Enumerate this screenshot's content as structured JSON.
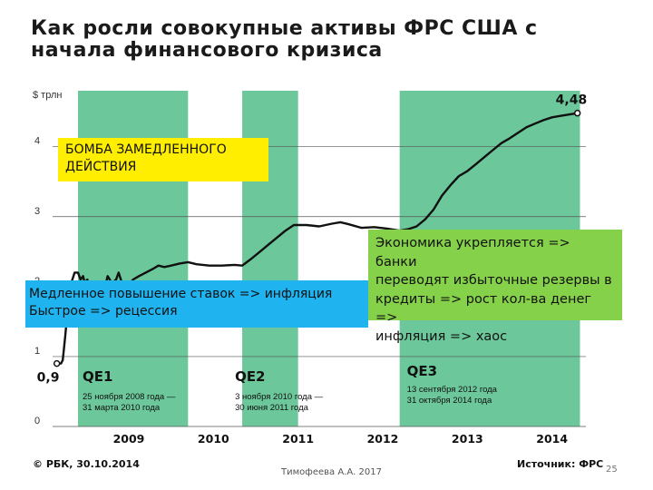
{
  "title": "Как росли совокупные активы ФРС США с начала финансового кризиса",
  "source": "Источник: ФРС",
  "copyright": "© РБК, 30.10.2014",
  "author": "Тимофеева А.А. 2017",
  "page_number": "25",
  "callouts": {
    "yellow": [
      "БОМБА ЗАМЕДЛЕННОГО",
      "ДЕЙСТВИЯ"
    ],
    "blue": [
      "Медленное повышение ставок => инфляция",
      "Быстрое => рецессия"
    ],
    "green": [
      "Экономика укрепляется => банки",
      "переводят избыточные резервы в",
      "кредиты => рост кол-ва денег =>",
      "инфляция => хаос"
    ]
  },
  "colors": {
    "qe_band": "#6cc79a",
    "line": "#111111",
    "yellow_box": "#ffee00",
    "blue_box": "#1fb4f0",
    "green_box": "#86d14a"
  },
  "chart_data": {
    "type": "line",
    "ylabel": "$ трлн",
    "ylim": [
      0,
      4.8
    ],
    "xlim": [
      2008.6,
      2014.9
    ],
    "yticks": [
      0,
      1,
      2,
      3,
      4
    ],
    "xticks": [
      "2009",
      "2010",
      "2011",
      "2012",
      "2013",
      "2014"
    ],
    "grid": true,
    "start_label": "0,9",
    "end_label": "4,48",
    "qe_periods": [
      {
        "name": "QE1",
        "start": 2008.9,
        "end": 2010.2,
        "text": [
          "25 ноября 2008 года —",
          "31 марта 2010 года"
        ]
      },
      {
        "name": "QE2",
        "start": 2010.84,
        "end": 2011.5,
        "text": [
          "3 ноября 2010 года —",
          "30 июня 2011 года"
        ]
      },
      {
        "name": "QE3",
        "start": 2012.7,
        "end": 2014.83,
        "text": [
          "13 сентября 2012 года",
          "31 октября 2014 года"
        ]
      }
    ],
    "series": [
      {
        "x": [
          2008.65,
          2008.7,
          2008.72,
          2008.75,
          2008.78,
          2008.82,
          2008.86,
          2008.9,
          2008.93,
          2008.96,
          2008.98,
          2009.01,
          2009.05,
          2009.08,
          2009.12,
          2009.15,
          2009.2,
          2009.25,
          2009.3,
          2009.35,
          2009.38,
          2009.42,
          2009.48,
          2009.55,
          2009.62,
          2009.7,
          2009.78,
          2009.85,
          2009.92,
          2010.0,
          2010.1,
          2010.2,
          2010.3,
          2010.45,
          2010.6,
          2010.75,
          2010.84,
          2010.95,
          2011.05,
          2011.15,
          2011.25,
          2011.35,
          2011.45,
          2011.5,
          2011.6,
          2011.75,
          2011.9,
          2012.0,
          2012.1,
          2012.25,
          2012.4,
          2012.55,
          2012.7,
          2012.8,
          2012.9,
          2013.0,
          2013.1,
          2013.2,
          2013.3,
          2013.4,
          2013.5,
          2013.6,
          2013.7,
          2013.8,
          2013.9,
          2014.0,
          2014.1,
          2014.2,
          2014.3,
          2014.4,
          2014.5,
          2014.6,
          2014.7,
          2014.8
        ],
        "y": [
          0.9,
          0.9,
          0.95,
          1.3,
          1.7,
          2.05,
          2.2,
          2.2,
          2.1,
          2.15,
          2.05,
          2.1,
          1.95,
          2.05,
          1.9,
          1.95,
          1.9,
          2.15,
          2.05,
          2.1,
          2.2,
          2.05,
          2.0,
          2.1,
          2.15,
          2.2,
          2.25,
          2.3,
          2.28,
          2.3,
          2.33,
          2.35,
          2.32,
          2.3,
          2.3,
          2.31,
          2.3,
          2.4,
          2.5,
          2.6,
          2.7,
          2.8,
          2.88,
          2.88,
          2.88,
          2.86,
          2.9,
          2.92,
          2.89,
          2.84,
          2.85,
          2.83,
          2.8,
          2.82,
          2.86,
          2.96,
          3.1,
          3.3,
          3.45,
          3.58,
          3.65,
          3.75,
          3.85,
          3.95,
          4.05,
          4.12,
          4.2,
          4.28,
          4.33,
          4.38,
          4.42,
          4.44,
          4.46,
          4.48
        ]
      }
    ]
  }
}
